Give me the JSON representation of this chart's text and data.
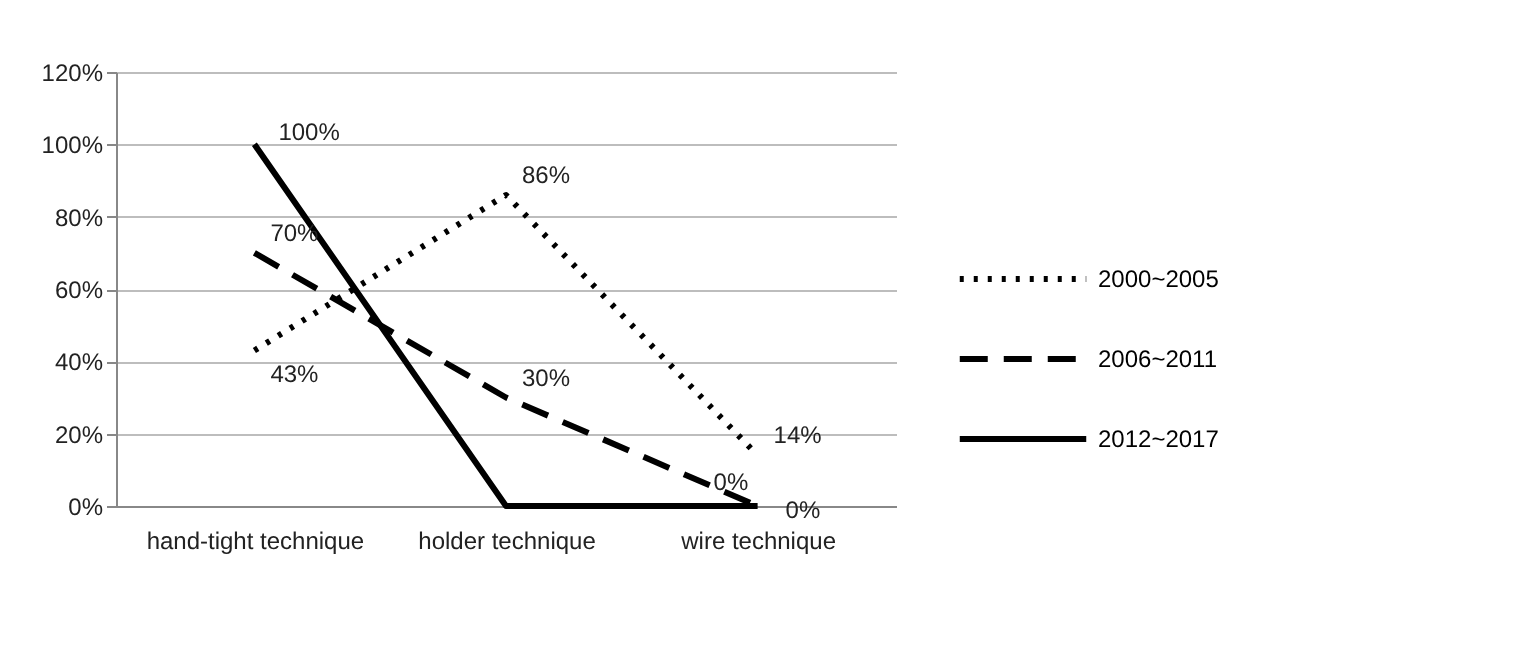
{
  "chart_data": {
    "type": "line",
    "categories": [
      "hand-tight technique",
      "holder technique",
      "wire technique"
    ],
    "series": [
      {
        "name": "2000~2005",
        "color": "#000000",
        "line_style": "dotted",
        "values": [
          43,
          86,
          14
        ],
        "value_labels": [
          "43%",
          "86%",
          "14%"
        ]
      },
      {
        "name": "2006~2011",
        "color": "#000000",
        "line_style": "dashed",
        "values": [
          70,
          30,
          0
        ],
        "value_labels": [
          "70%",
          "30%",
          "0%"
        ]
      },
      {
        "name": "2012~2017",
        "color": "#000000",
        "line_style": "solid",
        "values": [
          100,
          0,
          0
        ],
        "value_labels": [
          "100%",
          null,
          "0%"
        ]
      }
    ],
    "ylim": [
      0,
      120
    ],
    "yticks": [
      {
        "value": 0,
        "label": "0%"
      },
      {
        "value": 20,
        "label": "20%"
      },
      {
        "value": 40,
        "label": "40%"
      },
      {
        "value": 60,
        "label": "60%"
      },
      {
        "value": 80,
        "label": "80%"
      },
      {
        "value": 100,
        "label": "100%"
      },
      {
        "value": 120,
        "label": "120%"
      }
    ],
    "grid": "y",
    "legend": "right",
    "marker": "none"
  }
}
